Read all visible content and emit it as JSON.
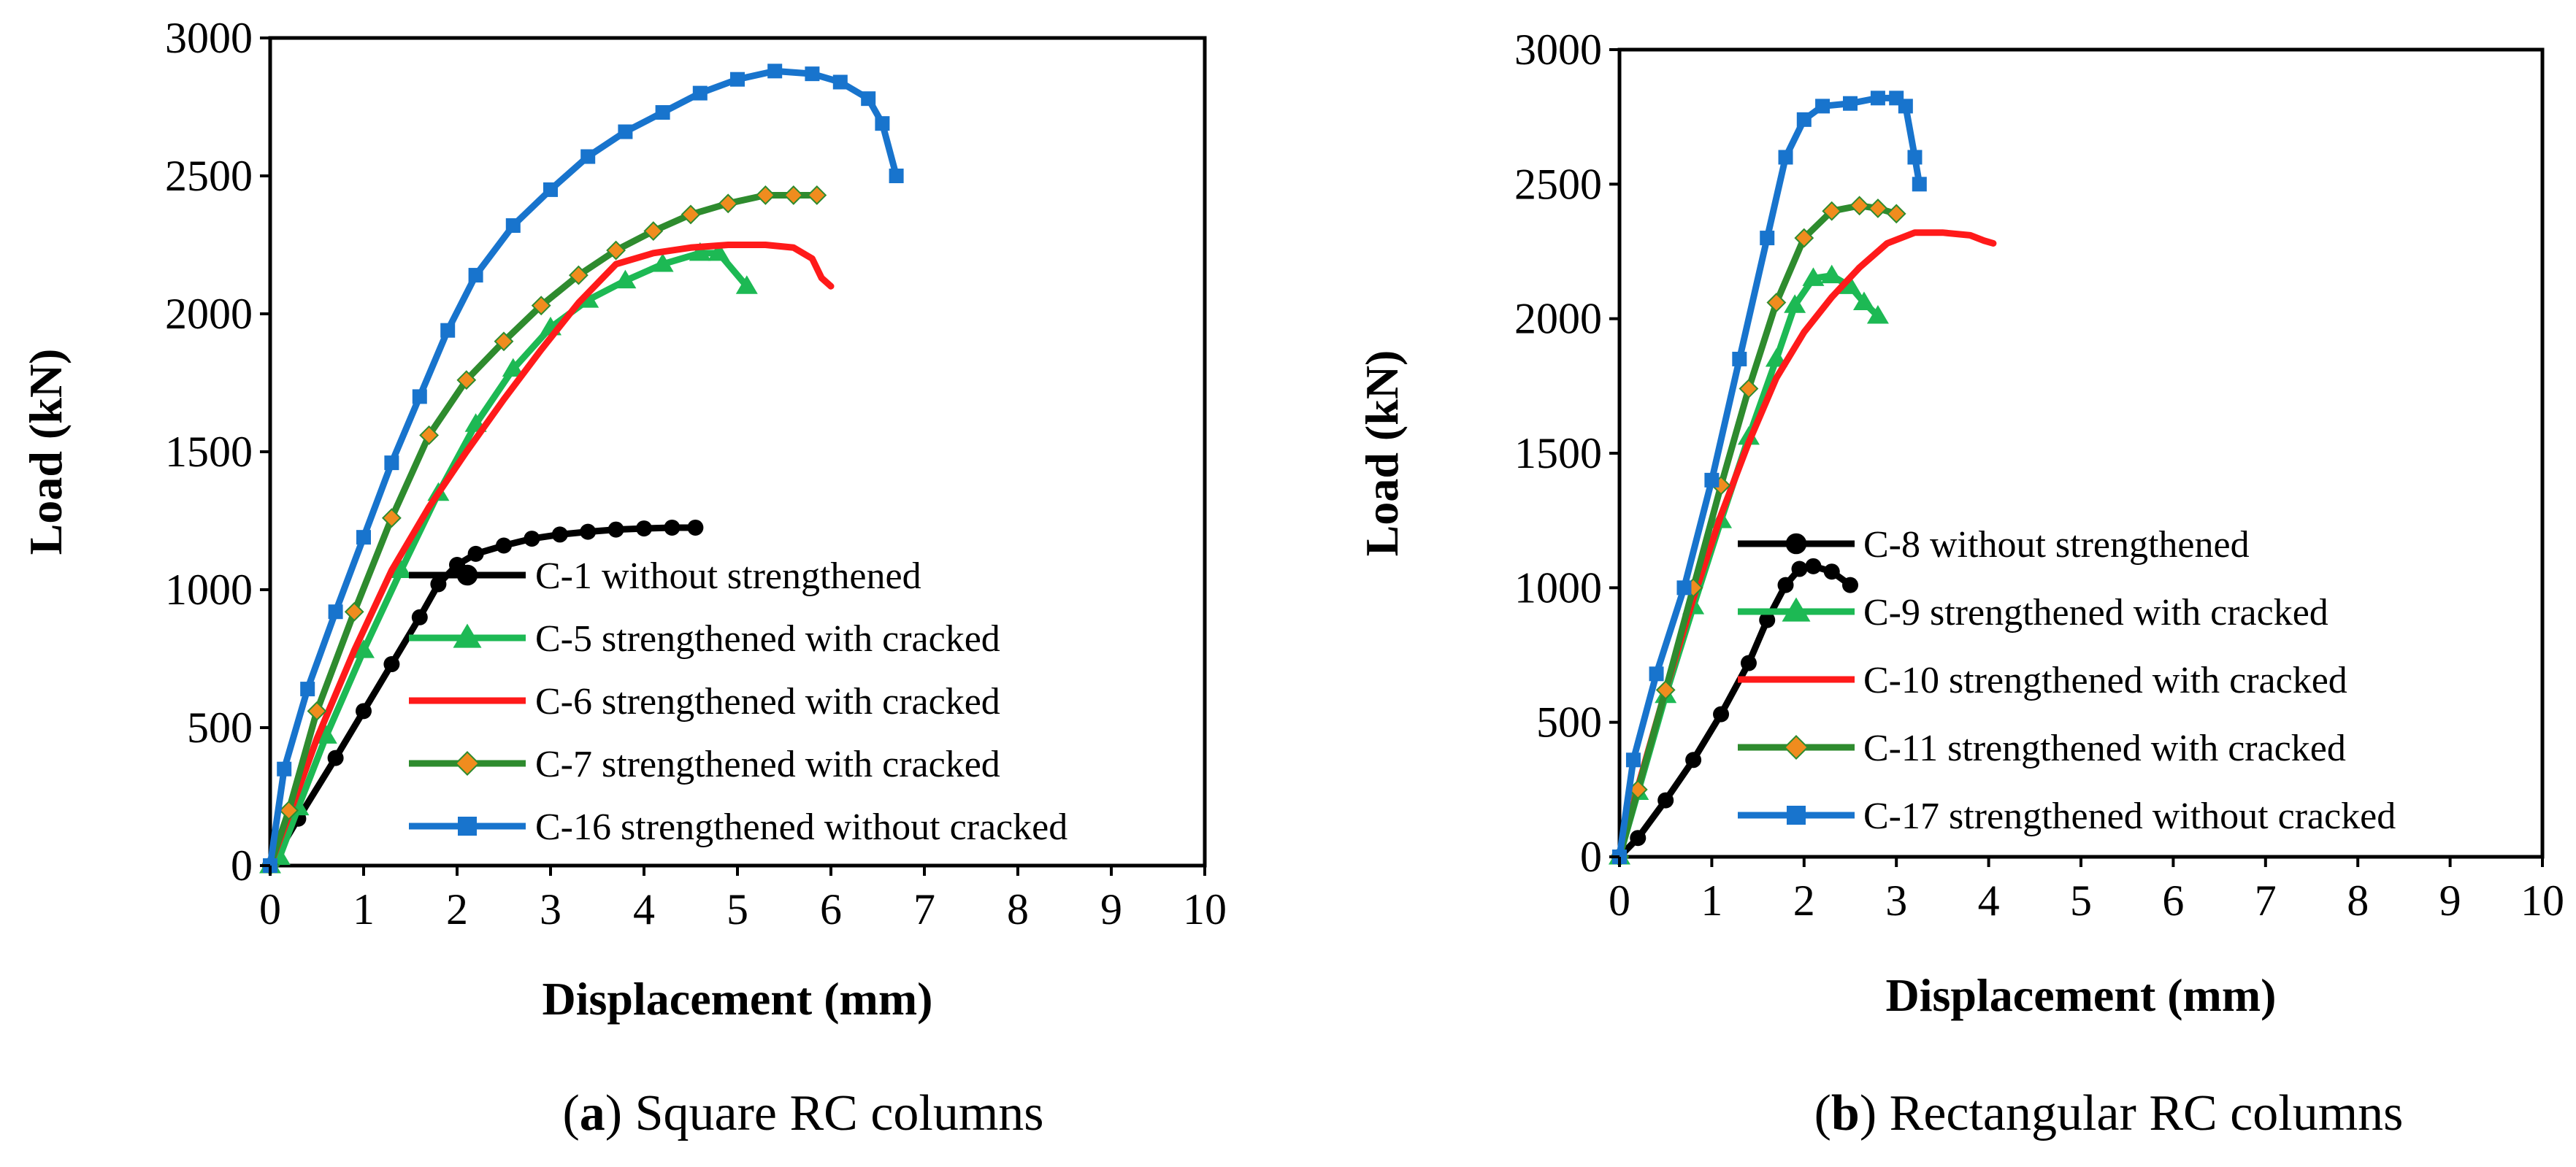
{
  "chart_data": [
    {
      "id": "a",
      "type": "line",
      "caption_letter": "a",
      "caption_text": " Square RC columns",
      "xlabel": "Displacement (mm)",
      "ylabel": "Load (kN)",
      "xlim": [
        0,
        10
      ],
      "ylim": [
        0,
        3000
      ],
      "xticks": [
        0,
        1,
        2,
        3,
        4,
        5,
        6,
        7,
        8,
        9,
        10
      ],
      "yticks": [
        0,
        500,
        1000,
        1500,
        2000,
        2500,
        3000
      ],
      "legend_position": "bottom-right",
      "series": [
        {
          "name": "C-1 without strengthened",
          "color": "#000000",
          "marker": "circle",
          "x": [
            0,
            0.3,
            0.7,
            1.0,
            1.3,
            1.6,
            1.8,
            2.0,
            2.2,
            2.5,
            2.8,
            3.1,
            3.4,
            3.7,
            4.0,
            4.3,
            4.55
          ],
          "y": [
            0,
            170,
            390,
            560,
            730,
            900,
            1020,
            1090,
            1130,
            1160,
            1185,
            1200,
            1210,
            1218,
            1222,
            1225,
            1225
          ]
        },
        {
          "name": "C-5 strengthened with cracked",
          "color": "#1DB954",
          "marker": "triangle",
          "x": [
            0,
            0.1,
            0.3,
            0.6,
            1.0,
            1.4,
            1.8,
            2.2,
            2.6,
            3.0,
            3.4,
            3.8,
            4.2,
            4.6,
            4.8,
            5.1
          ],
          "y": [
            0,
            30,
            210,
            470,
            780,
            1070,
            1350,
            1600,
            1800,
            1950,
            2050,
            2120,
            2180,
            2220,
            2220,
            2100
          ]
        },
        {
          "name": "C-6 strengthened with cracked",
          "color": "#FF1A1A",
          "marker": "none",
          "x": [
            0,
            0.2,
            0.5,
            0.9,
            1.3,
            1.7,
            2.1,
            2.5,
            2.9,
            3.3,
            3.7,
            4.1,
            4.5,
            4.9,
            5.3,
            5.6,
            5.8,
            5.9,
            6.0
          ],
          "y": [
            0,
            180,
            460,
            780,
            1070,
            1300,
            1500,
            1690,
            1870,
            2040,
            2180,
            2220,
            2240,
            2250,
            2250,
            2240,
            2200,
            2130,
            2100
          ]
        },
        {
          "name": "C-7 strengthened with cracked",
          "color": "#2E8B2E",
          "marker": "diamond",
          "x": [
            0,
            0.2,
            0.5,
            0.9,
            1.3,
            1.7,
            2.1,
            2.5,
            2.9,
            3.3,
            3.7,
            4.1,
            4.5,
            4.9,
            5.3,
            5.6,
            5.85
          ],
          "y": [
            0,
            200,
            560,
            920,
            1260,
            1560,
            1760,
            1900,
            2030,
            2140,
            2230,
            2300,
            2360,
            2400,
            2430,
            2430,
            2430
          ]
        },
        {
          "name": "C-16 strengthened without cracked",
          "color": "#1874CD",
          "marker": "square",
          "x": [
            0,
            0.15,
            0.4,
            0.7,
            1.0,
            1.3,
            1.6,
            1.9,
            2.2,
            2.6,
            3.0,
            3.4,
            3.8,
            4.2,
            4.6,
            5.0,
            5.4,
            5.8,
            6.1,
            6.4,
            6.55,
            6.7
          ],
          "y": [
            0,
            350,
            640,
            920,
            1190,
            1460,
            1700,
            1940,
            2140,
            2320,
            2450,
            2570,
            2660,
            2730,
            2800,
            2850,
            2880,
            2870,
            2840,
            2780,
            2690,
            2500
          ]
        }
      ]
    },
    {
      "id": "b",
      "type": "line",
      "caption_letter": "b",
      "caption_text": " Rectangular RC columns",
      "xlabel": "Displacement (mm)",
      "ylabel": "Load (kN)",
      "xlim": [
        0,
        10
      ],
      "ylim": [
        0,
        3000
      ],
      "xticks": [
        0,
        1,
        2,
        3,
        4,
        5,
        6,
        7,
        8,
        9,
        10
      ],
      "yticks": [
        0,
        500,
        1000,
        1500,
        2000,
        2500,
        3000
      ],
      "legend_position": "bottom-right",
      "series": [
        {
          "name": "C-8 without strengthened",
          "color": "#000000",
          "marker": "circle",
          "x": [
            0,
            0.2,
            0.5,
            0.8,
            1.1,
            1.4,
            1.6,
            1.8,
            1.95,
            2.1,
            2.3,
            2.5
          ],
          "y": [
            0,
            70,
            210,
            360,
            530,
            720,
            880,
            1010,
            1070,
            1080,
            1060,
            1010
          ]
        },
        {
          "name": "C-9 strengthened with cracked",
          "color": "#1DB954",
          "marker": "triangle",
          "x": [
            0,
            0.2,
            0.5,
            0.8,
            1.1,
            1.4,
            1.7,
            1.9,
            2.1,
            2.3,
            2.5,
            2.65,
            2.8
          ],
          "y": [
            0,
            240,
            600,
            930,
            1250,
            1560,
            1850,
            2050,
            2150,
            2160,
            2120,
            2060,
            2010
          ]
        },
        {
          "name": "C-10 strengthened with cracked",
          "color": "#FF1A1A",
          "marker": "none",
          "x": [
            0,
            0.2,
            0.5,
            0.8,
            1.1,
            1.4,
            1.7,
            2.0,
            2.3,
            2.6,
            2.9,
            3.2,
            3.5,
            3.8,
            3.95,
            4.05
          ],
          "y": [
            0,
            260,
            620,
            960,
            1270,
            1540,
            1780,
            1950,
            2080,
            2190,
            2280,
            2320,
            2320,
            2310,
            2290,
            2280
          ]
        },
        {
          "name": "C-11 strengthened with cracked",
          "color": "#2E8B2E",
          "marker": "diamond",
          "x": [
            0,
            0.2,
            0.5,
            0.8,
            1.1,
            1.4,
            1.7,
            2.0,
            2.3,
            2.6,
            2.8,
            3.0
          ],
          "y": [
            0,
            250,
            620,
            1000,
            1380,
            1740,
            2060,
            2300,
            2400,
            2420,
            2410,
            2390
          ]
        },
        {
          "name": "C-17 strengthened without cracked",
          "color": "#1874CD",
          "marker": "square",
          "x": [
            0,
            0.15,
            0.4,
            0.7,
            1.0,
            1.3,
            1.6,
            1.8,
            2.0,
            2.2,
            2.5,
            2.8,
            3.0,
            3.1,
            3.2,
            3.25
          ],
          "y": [
            0,
            360,
            680,
            1000,
            1400,
            1850,
            2300,
            2600,
            2740,
            2790,
            2800,
            2820,
            2820,
            2790,
            2600,
            2500
          ]
        }
      ]
    }
  ]
}
